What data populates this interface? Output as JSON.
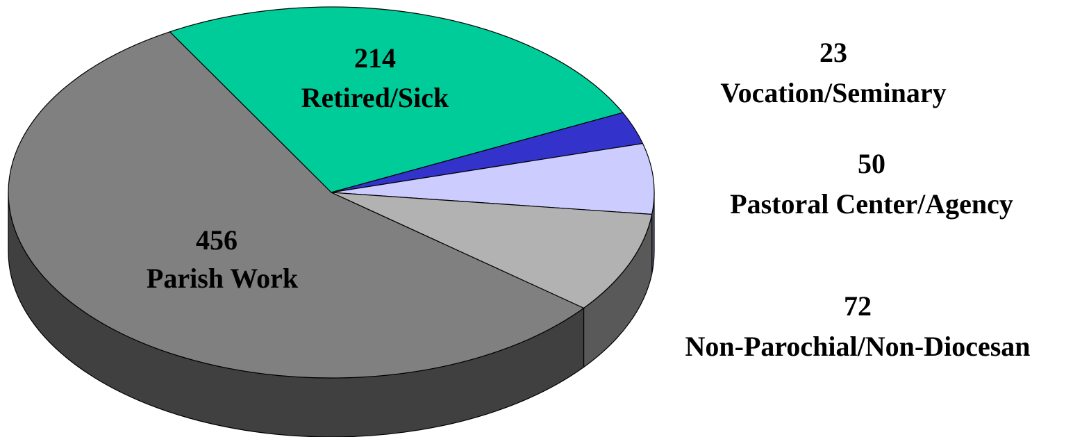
{
  "chart_data": {
    "type": "pie",
    "categories": [
      "Parish Work",
      "Retired/Sick",
      "Vocation/Seminary",
      "Pastoral Center/Agency",
      "Non-Parochial/Non-Diocesan"
    ],
    "values": [
      456,
      214,
      23,
      50,
      72
    ],
    "colors": [
      "#808080",
      "#00cc99",
      "#3333cc",
      "#ccccff",
      "#b2b2b2"
    ]
  }
}
